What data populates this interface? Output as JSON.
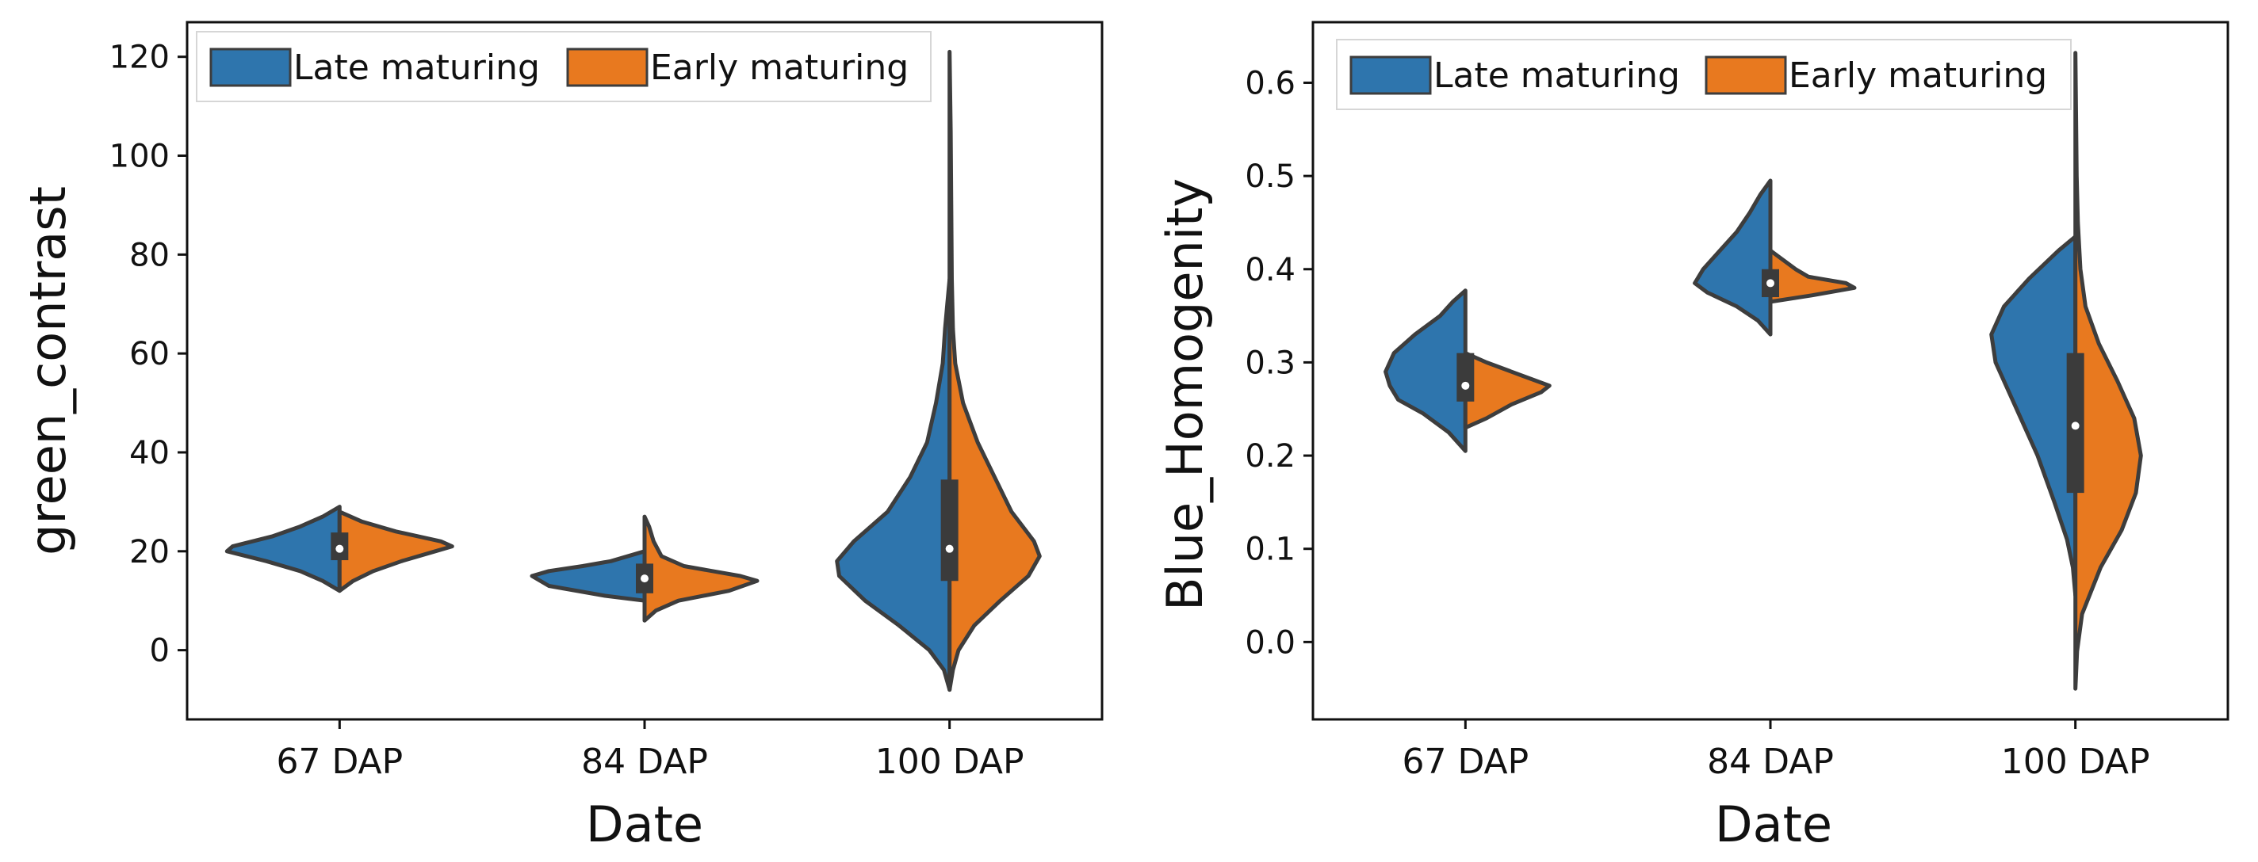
{
  "colors": {
    "late": "#2e75ad",
    "early": "#e8791f",
    "outline": "#3d3d3d",
    "box": "#3b3b3b"
  },
  "chart_data": [
    {
      "type": "violin",
      "title": "",
      "xlabel": "Date",
      "ylabel": "green_contrast",
      "ylim": [
        -14,
        127
      ],
      "yticks": [
        0,
        20,
        40,
        60,
        80,
        100,
        120
      ],
      "ytick_labels": [
        "0",
        "20",
        "40",
        "60",
        "80",
        "100",
        "120"
      ],
      "categories": [
        "67  DAP",
        "84 DAP",
        "100 DAP"
      ],
      "legend": {
        "position": "top-left",
        "entries": [
          "Late maturing",
          "Early maturing"
        ]
      },
      "groups": [
        {
          "category": "67  DAP",
          "median": 20.5,
          "q1": 18.2,
          "q3": 23.8,
          "late": {
            "min": 12,
            "max": 29,
            "profile": [
              [
                12,
                0
              ],
              [
                14,
                0.15
              ],
              [
                16,
                0.35
              ],
              [
                18,
                0.65
              ],
              [
                20,
                1.0
              ],
              [
                21,
                0.95
              ],
              [
                23,
                0.6
              ],
              [
                25,
                0.35
              ],
              [
                27,
                0.15
              ],
              [
                29,
                0
              ]
            ]
          },
          "early": {
            "min": 12,
            "max": 28,
            "profile": [
              [
                12,
                0
              ],
              [
                14,
                0.12
              ],
              [
                16,
                0.3
              ],
              [
                18,
                0.55
              ],
              [
                20,
                0.85
              ],
              [
                21,
                1.0
              ],
              [
                22,
                0.9
              ],
              [
                24,
                0.5
              ],
              [
                26,
                0.2
              ],
              [
                28,
                0
              ]
            ]
          }
        },
        {
          "category": "84 DAP",
          "median": 14.5,
          "q1": 11.5,
          "q3": 17.5,
          "late": {
            "min": 10,
            "max": 20,
            "profile": [
              [
                10,
                0
              ],
              [
                11,
                0.35
              ],
              [
                13,
                0.85
              ],
              [
                15,
                1.0
              ],
              [
                16,
                0.85
              ],
              [
                17,
                0.55
              ],
              [
                18,
                0.3
              ],
              [
                20,
                0
              ]
            ]
          },
          "early": {
            "min": 6,
            "max": 27,
            "profile": [
              [
                6,
                0
              ],
              [
                8,
                0.1
              ],
              [
                10,
                0.3
              ],
              [
                12,
                0.75
              ],
              [
                14,
                1.0
              ],
              [
                15,
                0.85
              ],
              [
                17,
                0.35
              ],
              [
                19,
                0.15
              ],
              [
                22,
                0.08
              ],
              [
                25,
                0.04
              ],
              [
                27,
                0
              ]
            ]
          }
        },
        {
          "category": "100 DAP",
          "median": 20.5,
          "q1": 14,
          "q3": 34.5,
          "late": {
            "min": -8,
            "max": 75,
            "profile": [
              [
                -8,
                0
              ],
              [
                -4,
                0.05
              ],
              [
                0,
                0.18
              ],
              [
                5,
                0.45
              ],
              [
                10,
                0.75
              ],
              [
                15,
                0.98
              ],
              [
                18,
                1.0
              ],
              [
                22,
                0.85
              ],
              [
                28,
                0.55
              ],
              [
                35,
                0.35
              ],
              [
                42,
                0.2
              ],
              [
                50,
                0.12
              ],
              [
                58,
                0.06
              ],
              [
                65,
                0.04
              ],
              [
                70,
                0.02
              ],
              [
                75,
                0
              ]
            ]
          },
          "early": {
            "min": -8,
            "max": 121,
            "profile": [
              [
                -8,
                0
              ],
              [
                -4,
                0.03
              ],
              [
                0,
                0.08
              ],
              [
                5,
                0.22
              ],
              [
                10,
                0.45
              ],
              [
                15,
                0.7
              ],
              [
                19,
                0.8
              ],
              [
                22,
                0.75
              ],
              [
                28,
                0.55
              ],
              [
                35,
                0.4
              ],
              [
                42,
                0.25
              ],
              [
                50,
                0.12
              ],
              [
                58,
                0.05
              ],
              [
                65,
                0.03
              ],
              [
                75,
                0.02
              ],
              [
                90,
                0.015
              ],
              [
                105,
                0.01
              ],
              [
                121,
                0
              ]
            ]
          }
        }
      ]
    },
    {
      "type": "violin",
      "title": "",
      "xlabel": "Date",
      "ylabel": "Blue_Homogenity",
      "ylim": [
        -0.083,
        0.665
      ],
      "yticks": [
        0.0,
        0.1,
        0.2,
        0.3,
        0.4,
        0.5,
        0.6
      ],
      "ytick_labels": [
        "0.0",
        "0.1",
        "0.2",
        "0.3",
        "0.4",
        "0.5",
        "0.6"
      ],
      "categories": [
        "67  DAP",
        "84 DAP",
        "100 DAP"
      ],
      "legend": {
        "position": "top-left",
        "entries": [
          "Late maturing",
          "Early maturing"
        ]
      },
      "groups": [
        {
          "category": "67  DAP",
          "median": 0.275,
          "q1": 0.258,
          "q3": 0.31,
          "late": {
            "min": 0.205,
            "max": 0.377,
            "profile": [
              [
                0.205,
                0
              ],
              [
                0.225,
                0.2
              ],
              [
                0.245,
                0.5
              ],
              [
                0.26,
                0.8
              ],
              [
                0.275,
                0.9
              ],
              [
                0.29,
                0.95
              ],
              [
                0.31,
                0.85
              ],
              [
                0.33,
                0.6
              ],
              [
                0.35,
                0.3
              ],
              [
                0.365,
                0.15
              ],
              [
                0.377,
                0
              ]
            ]
          },
          "early": {
            "min": 0.23,
            "max": 0.31,
            "profile": [
              [
                0.23,
                0
              ],
              [
                0.24,
                0.25
              ],
              [
                0.255,
                0.55
              ],
              [
                0.268,
                0.9
              ],
              [
                0.275,
                1.0
              ],
              [
                0.285,
                0.7
              ],
              [
                0.3,
                0.25
              ],
              [
                0.31,
                0
              ]
            ]
          }
        },
        {
          "category": "84 DAP",
          "median": 0.385,
          "q1": 0.37,
          "q3": 0.4,
          "late": {
            "min": 0.33,
            "max": 0.495,
            "profile": [
              [
                0.33,
                0
              ],
              [
                0.345,
                0.15
              ],
              [
                0.36,
                0.4
              ],
              [
                0.375,
                0.75
              ],
              [
                0.385,
                0.9
              ],
              [
                0.4,
                0.8
              ],
              [
                0.42,
                0.6
              ],
              [
                0.44,
                0.4
              ],
              [
                0.46,
                0.25
              ],
              [
                0.48,
                0.12
              ],
              [
                0.495,
                0
              ]
            ]
          },
          "early": {
            "min": 0.365,
            "max": 0.42,
            "profile": [
              [
                0.365,
                0
              ],
              [
                0.372,
                0.5
              ],
              [
                0.38,
                1.0
              ],
              [
                0.385,
                0.9
              ],
              [
                0.392,
                0.45
              ],
              [
                0.4,
                0.3
              ],
              [
                0.41,
                0.15
              ],
              [
                0.42,
                0
              ]
            ]
          }
        },
        {
          "category": "100 DAP",
          "median": 0.232,
          "q1": 0.16,
          "q3": 0.31,
          "late": {
            "min": 0.05,
            "max": 0.435,
            "profile": [
              [
                0.05,
                0
              ],
              [
                0.08,
                0.03
              ],
              [
                0.11,
                0.1
              ],
              [
                0.15,
                0.25
              ],
              [
                0.2,
                0.45
              ],
              [
                0.25,
                0.7
              ],
              [
                0.3,
                0.95
              ],
              [
                0.33,
                1.0
              ],
              [
                0.36,
                0.85
              ],
              [
                0.39,
                0.55
              ],
              [
                0.42,
                0.2
              ],
              [
                0.435,
                0
              ]
            ]
          },
          "early": {
            "min": -0.05,
            "max": 0.632,
            "profile": [
              [
                -0.05,
                0
              ],
              [
                -0.01,
                0.02
              ],
              [
                0.03,
                0.08
              ],
              [
                0.08,
                0.3
              ],
              [
                0.12,
                0.55
              ],
              [
                0.16,
                0.72
              ],
              [
                0.2,
                0.78
              ],
              [
                0.24,
                0.7
              ],
              [
                0.28,
                0.5
              ],
              [
                0.32,
                0.28
              ],
              [
                0.36,
                0.12
              ],
              [
                0.4,
                0.06
              ],
              [
                0.45,
                0.03
              ],
              [
                0.5,
                0.015
              ],
              [
                0.55,
                0.01
              ],
              [
                0.632,
                0
              ]
            ]
          }
        }
      ]
    }
  ]
}
